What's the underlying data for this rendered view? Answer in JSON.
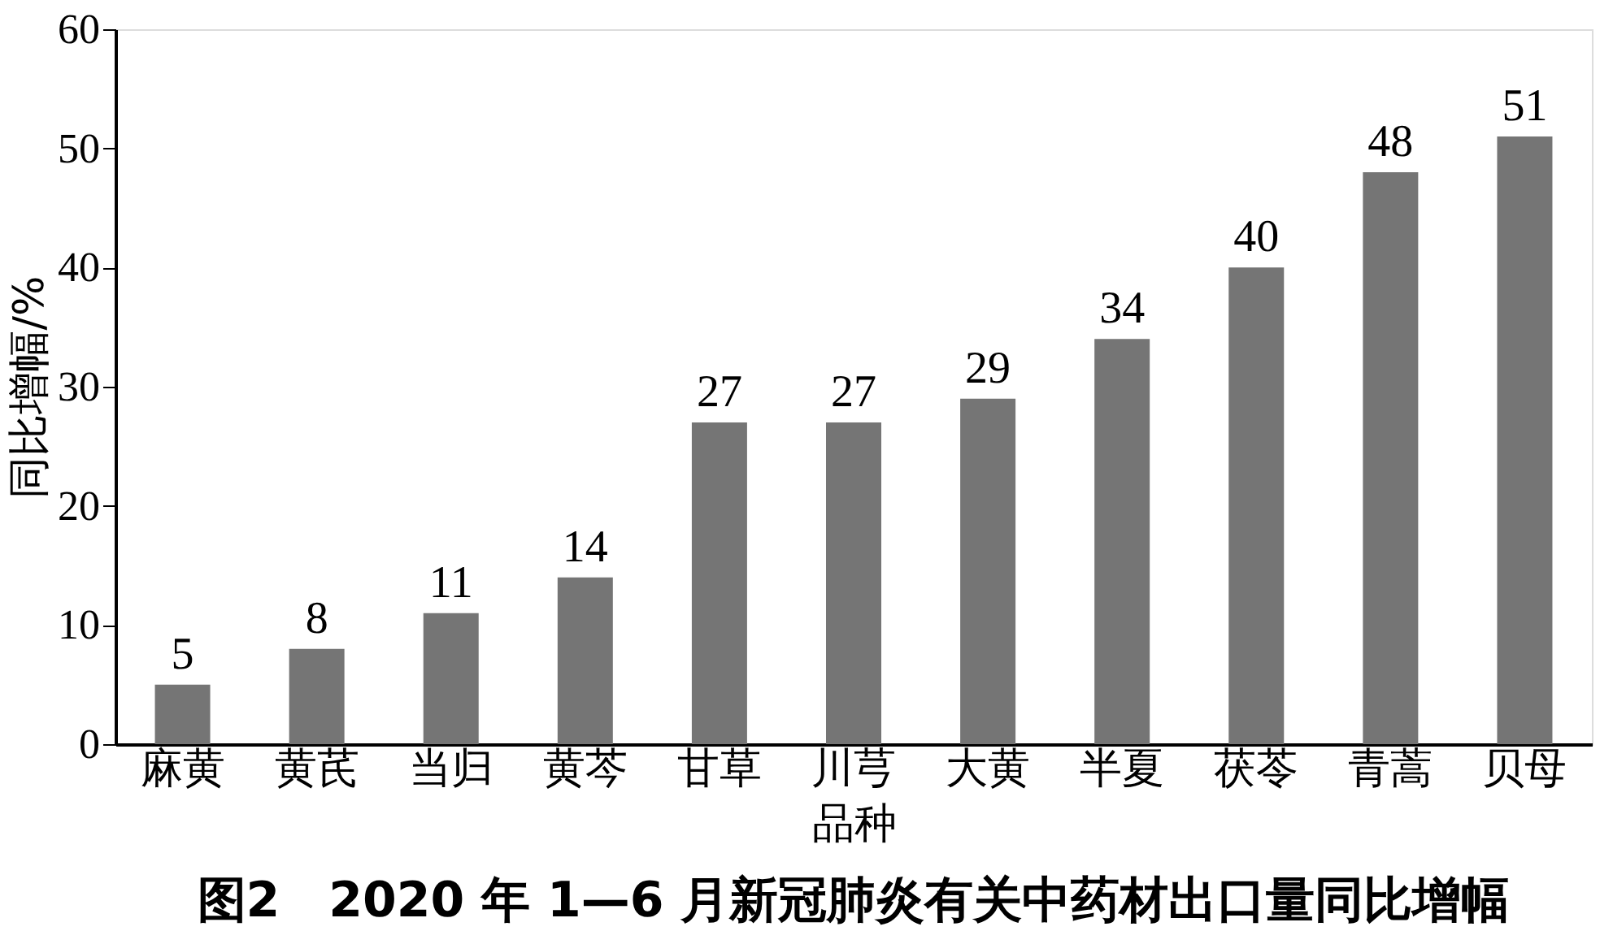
{
  "chart_data": {
    "type": "bar",
    "title": "图2　2020 年 1—6 月新冠肺炎有关中药材出口量同比增幅",
    "xlabel": "品种",
    "ylabel": "同比增幅/%",
    "categories": [
      "麻黄",
      "黄芪",
      "当归",
      "黄芩",
      "甘草",
      "川芎",
      "大黄",
      "半夏",
      "茯苓",
      "青蒿",
      "贝母"
    ],
    "values": [
      5,
      8,
      11,
      14,
      27,
      27,
      29,
      34,
      40,
      48,
      51
    ],
    "color": "#757575",
    "ylim": [
      0,
      60
    ],
    "yticks": [
      0,
      10,
      20,
      30,
      40,
      50,
      60
    ],
    "grid": false,
    "data_labels": true
  }
}
